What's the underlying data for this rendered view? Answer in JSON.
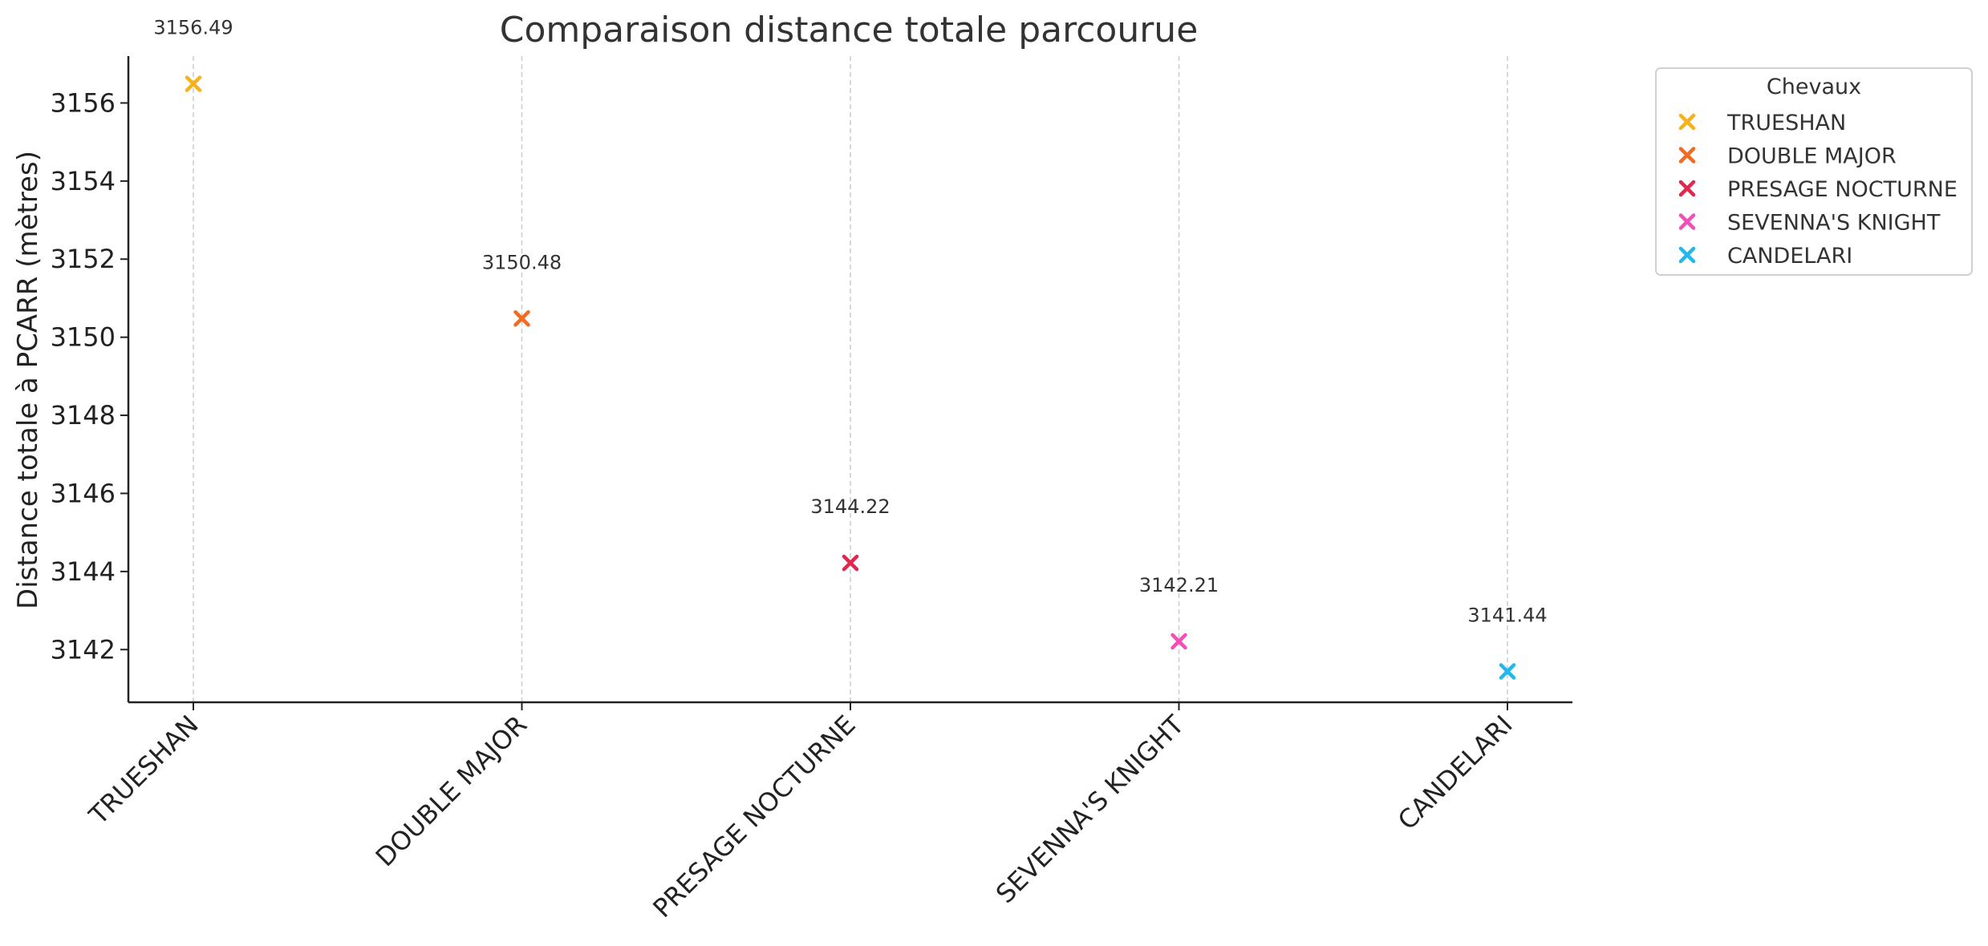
{
  "chart_data": {
    "type": "scatter",
    "title": "Comparaison distance totale parcourue",
    "xlabel": "",
    "ylabel": "Distance totale à PCARR (mètres)",
    "categories": [
      "TRUESHAN",
      "DOUBLE MAJOR",
      "PRESAGE NOCTURNE",
      "SEVENNA'S KNIGHT",
      "CANDELARI"
    ],
    "series": [
      {
        "name": "TRUESHAN",
        "category": "TRUESHAN",
        "value": 3156.49,
        "label": "3156.49",
        "color": "#f5b21a"
      },
      {
        "name": "DOUBLE MAJOR",
        "category": "DOUBLE MAJOR",
        "value": 3150.48,
        "label": "3150.48",
        "color": "#f26b22"
      },
      {
        "name": "PRESAGE NOCTURNE",
        "category": "PRESAGE NOCTURNE",
        "value": 3144.22,
        "label": "3144.22",
        "color": "#e0284f"
      },
      {
        "name": "SEVENNA'S KNIGHT",
        "category": "SEVENNA'S KNIGHT",
        "value": 3142.21,
        "label": "3142.21",
        "color": "#f24fb8"
      },
      {
        "name": "CANDELARI",
        "category": "CANDELARI",
        "value": 3141.44,
        "label": "3141.44",
        "color": "#22b8ec"
      }
    ],
    "yticks": [
      "3142",
      "3144",
      "3146",
      "3148",
      "3150",
      "3152",
      "3154",
      "3156"
    ],
    "ylim": [
      3140.65,
      3157.2
    ],
    "grid": "vertical dashed",
    "legend": {
      "title": "Chevaux",
      "placement": "outside top-right"
    },
    "marker": "x"
  }
}
